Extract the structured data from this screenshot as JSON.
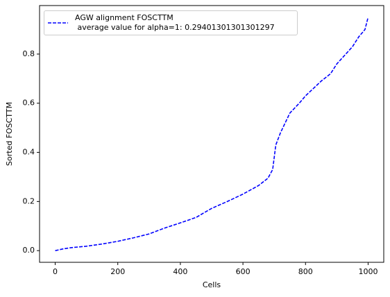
{
  "chart_data": {
    "type": "line",
    "xlabel": "Cells",
    "ylabel": "Sorted FOSCTTM",
    "x": [
      0,
      25,
      50,
      100,
      150,
      200,
      250,
      300,
      350,
      400,
      450,
      500,
      550,
      600,
      650,
      680,
      695,
      705,
      720,
      750,
      780,
      800,
      850,
      880,
      900,
      950,
      970,
      990,
      1000
    ],
    "series": [
      {
        "name": "AGW alignment FOSCTTM\n average value for alpha=1: 0.29401301301301297",
        "color": "#0000ff",
        "values": [
          0.0,
          0.007,
          0.012,
          0.018,
          0.027,
          0.038,
          0.052,
          0.068,
          0.092,
          0.113,
          0.135,
          0.172,
          0.2,
          0.23,
          0.265,
          0.295,
          0.33,
          0.43,
          0.48,
          0.56,
          0.6,
          0.63,
          0.69,
          0.72,
          0.76,
          0.83,
          0.87,
          0.9,
          0.95
        ]
      }
    ],
    "xlim": [
      -50,
      1050
    ],
    "xticks": [
      0,
      200,
      400,
      600,
      800,
      1000
    ],
    "ylim": [
      -0.0475,
      0.9975
    ],
    "yticks": [
      {
        "value": 0,
        "label": "0.0"
      },
      {
        "value": 0.2,
        "label": "0.2"
      },
      {
        "value": 0.4,
        "label": "0.4"
      },
      {
        "value": 0.6,
        "label": "0.6"
      },
      {
        "value": 0.8,
        "label": "0.8"
      }
    ],
    "legend": "upper left"
  }
}
